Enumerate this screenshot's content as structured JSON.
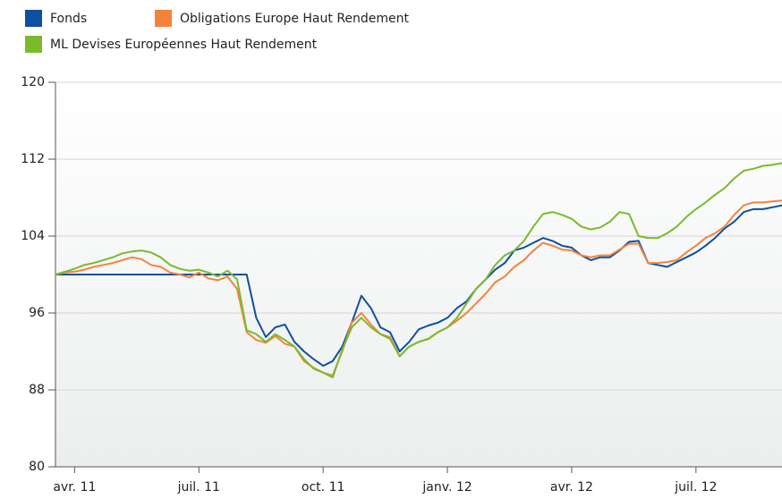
{
  "chart_data": {
    "type": "line",
    "categories": [
      null,
      null,
      "avr. 11",
      null,
      null,
      null,
      null,
      null,
      null,
      null,
      null,
      null,
      null,
      null,
      null,
      "juil. 11",
      null,
      null,
      null,
      null,
      null,
      null,
      null,
      null,
      null,
      null,
      null,
      null,
      "oct. 11",
      null,
      null,
      null,
      null,
      null,
      null,
      null,
      null,
      null,
      null,
      null,
      null,
      "janv. 12",
      null,
      null,
      null,
      null,
      null,
      null,
      null,
      null,
      null,
      null,
      null,
      null,
      "avr. 12",
      null,
      null,
      null,
      null,
      null,
      null,
      null,
      null,
      null,
      null,
      null,
      null,
      "juil. 12",
      null,
      null,
      null,
      null,
      null,
      null,
      null,
      null,
      null
    ],
    "series": [
      {
        "name": "Fonds",
        "color": "#0e4fa0",
        "values": [
          100,
          100,
          100,
          100,
          100,
          100,
          100,
          100,
          100,
          100,
          100,
          100,
          100,
          100,
          100,
          100,
          100,
          100,
          100,
          100,
          100,
          95.5,
          93.5,
          94.5,
          94.8,
          93,
          92,
          91.2,
          90.5,
          91,
          92.5,
          95,
          97.8,
          96.5,
          94.5,
          94,
          92,
          93,
          94.3,
          94.7,
          95,
          95.5,
          96.5,
          97.2,
          98.5,
          99.5,
          100.5,
          101.2,
          102.5,
          102.8,
          103.3,
          103.8,
          103.5,
          103,
          102.8,
          102,
          101.5,
          101.8,
          101.8,
          102.5,
          103.4,
          103.5,
          101.2,
          101,
          100.8,
          101.3,
          101.8,
          102.3,
          103,
          103.8,
          104.8,
          105.5,
          106.5,
          106.8,
          106.8,
          107,
          107.2
        ]
      },
      {
        "name": "Obligations Europe Haut Rendement",
        "color": "#f5823a",
        "values": [
          100,
          100.2,
          100.3,
          100.5,
          100.8,
          101,
          101.2,
          101.5,
          101.8,
          101.6,
          101,
          100.8,
          100.2,
          100,
          99.7,
          100.2,
          99.6,
          99.4,
          99.8,
          98.5,
          94,
          93.2,
          92.9,
          93.6,
          92.8,
          92.5,
          91,
          90.3,
          89.8,
          89.5,
          92,
          95,
          96,
          94.8,
          93.8,
          93.5,
          91.5,
          92.5,
          93,
          93.3,
          94,
          94.5,
          95.2,
          96,
          97,
          98,
          99.2,
          99.8,
          100.8,
          101.5,
          102.5,
          103.3,
          103,
          102.6,
          102.5,
          102,
          101.8,
          102,
          102,
          102.6,
          103.2,
          103.2,
          101.2,
          101.2,
          101.3,
          101.5,
          102.3,
          103,
          103.8,
          104.3,
          105,
          106.2,
          107.2,
          107.5,
          107.5,
          107.6,
          107.7
        ]
      },
      {
        "name": "ML Devises Européennes Haut Rendement",
        "color": "#7aba2c",
        "values": [
          100,
          100.3,
          100.6,
          101,
          101.2,
          101.5,
          101.8,
          102.2,
          102.4,
          102.5,
          102.3,
          101.8,
          101,
          100.6,
          100.4,
          100.5,
          100.2,
          99.8,
          100.4,
          99.5,
          94.2,
          93.8,
          93,
          93.8,
          93.2,
          92.5,
          91.2,
          90.2,
          89.8,
          89.3,
          92.2,
          94.5,
          95.5,
          94.5,
          93.8,
          93.3,
          91.5,
          92.5,
          93,
          93.3,
          94,
          94.5,
          95.5,
          97,
          98.5,
          99.5,
          101,
          102,
          102.5,
          103.5,
          105,
          106.3,
          106.5,
          106.2,
          105.8,
          105,
          104.7,
          104.9,
          105.5,
          106.5,
          106.3,
          104,
          103.8,
          103.8,
          104.3,
          105,
          106,
          106.8,
          107.5,
          108.3,
          109,
          110,
          110.8,
          111,
          111.3,
          111.4,
          111.6
        ]
      }
    ],
    "ylim": [
      80,
      120
    ],
    "yticks": [
      80,
      88,
      96,
      104,
      112,
      120
    ],
    "grid": true
  }
}
